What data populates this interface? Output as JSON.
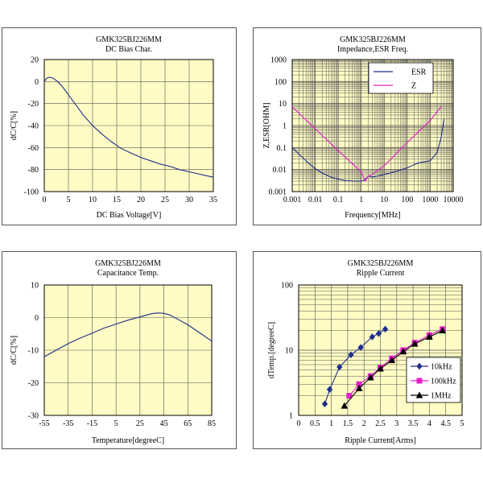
{
  "chart_data": [
    {
      "type": "line",
      "title": "GMK325BJ226MM",
      "subtitle": "DC Bias Char.",
      "xlabel": "DC Bias Voltage[V]",
      "ylabel": "dC/C[%]",
      "xlim": [
        0,
        35
      ],
      "ylim": [
        -100,
        20
      ],
      "xticks": [
        "0",
        "5",
        "10",
        "15",
        "20",
        "25",
        "30",
        "35"
      ],
      "yticks": [
        "20",
        "0",
        "-20",
        "-40",
        "-60",
        "-80",
        "-100"
      ],
      "x_scale": "linear",
      "y_scale": "linear",
      "grid": true,
      "series": [
        {
          "color": "#1f2f8a",
          "x": [
            0,
            0.5,
            1,
            1.5,
            2,
            2.5,
            3,
            4,
            5,
            6,
            7,
            8,
            10,
            12,
            14,
            16,
            18,
            20,
            22,
            24,
            26,
            28,
            30,
            32,
            35
          ],
          "y": [
            0,
            3,
            4,
            3.5,
            2.5,
            1,
            -1,
            -6,
            -12,
            -18,
            -24,
            -30,
            -40,
            -48,
            -55,
            -61,
            -65,
            -69,
            -72,
            -75,
            -77,
            -80,
            -82,
            -84,
            -87
          ]
        }
      ]
    },
    {
      "type": "line",
      "title": "GMK325BJ226MM",
      "subtitle": "Impedance,ESR Freq.",
      "xlabel": "Frequency[MHz]",
      "ylabel": "Z,ESR[OHM]",
      "xlim": [
        0.001,
        10000
      ],
      "ylim": [
        0.001,
        1000
      ],
      "xticks": [
        "0.001",
        "0.01",
        "0.1",
        "1",
        "10",
        "100",
        "1000",
        "10000"
      ],
      "yticks": [
        "1000",
        "100",
        "10",
        "1",
        "0.1",
        "0.01",
        "0.001"
      ],
      "x_scale": "log",
      "y_scale": "log",
      "grid": true,
      "legend": "top-right",
      "series": [
        {
          "name": "ESR",
          "color": "#1f2f8a",
          "x": [
            0.001,
            0.002,
            0.005,
            0.01,
            0.02,
            0.05,
            0.1,
            0.2,
            0.5,
            1,
            1.5,
            2,
            3,
            5,
            10,
            30,
            100,
            300,
            1000,
            2000,
            3000,
            4000
          ],
          "y": [
            0.1,
            0.05,
            0.02,
            0.011,
            0.007,
            0.0045,
            0.0037,
            0.0032,
            0.003,
            0.003,
            0.0035,
            0.005,
            0.0045,
            0.005,
            0.006,
            0.008,
            0.012,
            0.02,
            0.025,
            0.06,
            0.3,
            2
          ]
        },
        {
          "name": "Z",
          "color": "#e020c8",
          "x": [
            0.001,
            0.01,
            0.1,
            1,
            1.5,
            2,
            3,
            10,
            100,
            1000,
            3000
          ],
          "y": [
            7.2,
            0.72,
            0.072,
            0.008,
            0.003,
            0.005,
            0.006,
            0.015,
            0.17,
            1.7,
            7.5
          ]
        }
      ]
    },
    {
      "type": "line",
      "title": "GMK325BJ226MM",
      "subtitle": "Capacitance Temp.",
      "xlabel": "Temperature[degreeC]",
      "ylabel": "dC/C[%]",
      "xlim": [
        -55,
        85
      ],
      "ylim": [
        -30,
        10
      ],
      "xticks": [
        "-55",
        "-35",
        "-15",
        "5",
        "25",
        "45",
        "65",
        "85"
      ],
      "yticks": [
        "10",
        "0",
        "-10",
        "-20",
        "-30"
      ],
      "x_scale": "linear",
      "y_scale": "linear",
      "grid": true,
      "series": [
        {
          "color": "#1f2f8a",
          "x": [
            -55,
            -45,
            -35,
            -25,
            -15,
            -5,
            5,
            15,
            25,
            35,
            40,
            45,
            50,
            55,
            65,
            75,
            85
          ],
          "y": [
            -12,
            -10,
            -8,
            -6.3,
            -4.8,
            -3.2,
            -2,
            -0.8,
            0.2,
            1.2,
            1.4,
            1.3,
            0.8,
            -0.2,
            -2.2,
            -4.7,
            -7.2
          ]
        }
      ]
    },
    {
      "type": "line",
      "title": "GMK325BJ226MM",
      "subtitle": "Ripple Current",
      "xlabel": "Ripple Current[Arms]",
      "ylabel": "dTemp.[degreeC]",
      "xlim": [
        0,
        5
      ],
      "ylim": [
        1,
        100
      ],
      "xticks": [
        "0",
        "0.5",
        "1",
        "1.5",
        "2",
        "2.5",
        "3",
        "3.5",
        "4",
        "4.5",
        "5"
      ],
      "yticks": [
        "100",
        "10",
        "1"
      ],
      "x_scale": "linear",
      "y_scale": "log",
      "grid": true,
      "legend": "bottom-right",
      "series": [
        {
          "name": "10kHz",
          "color": "#1f2f8a",
          "marker": "diamond",
          "x": [
            0.8,
            0.95,
            1.25,
            1.6,
            1.9,
            2.25,
            2.45,
            2.65
          ],
          "y": [
            1.5,
            2.5,
            5.5,
            8.5,
            11,
            16,
            18,
            21
          ]
        },
        {
          "name": "100kHz",
          "color": "#e020c8",
          "marker": "square",
          "x": [
            1.55,
            1.85,
            2.2,
            2.5,
            2.85,
            3.2,
            3.55,
            4,
            4.4
          ],
          "y": [
            2,
            3,
            4,
            5.4,
            7.5,
            10,
            13,
            17,
            21
          ]
        },
        {
          "name": "1MHz",
          "color": "#000000",
          "marker": "triangle",
          "x": [
            1.4,
            1.85,
            2.2,
            2.5,
            2.85,
            3.2,
            3.55,
            4,
            4.4
          ],
          "y": [
            1.4,
            2.6,
            3.8,
            5.2,
            7,
            9.5,
            12.5,
            16,
            20
          ]
        }
      ]
    }
  ]
}
